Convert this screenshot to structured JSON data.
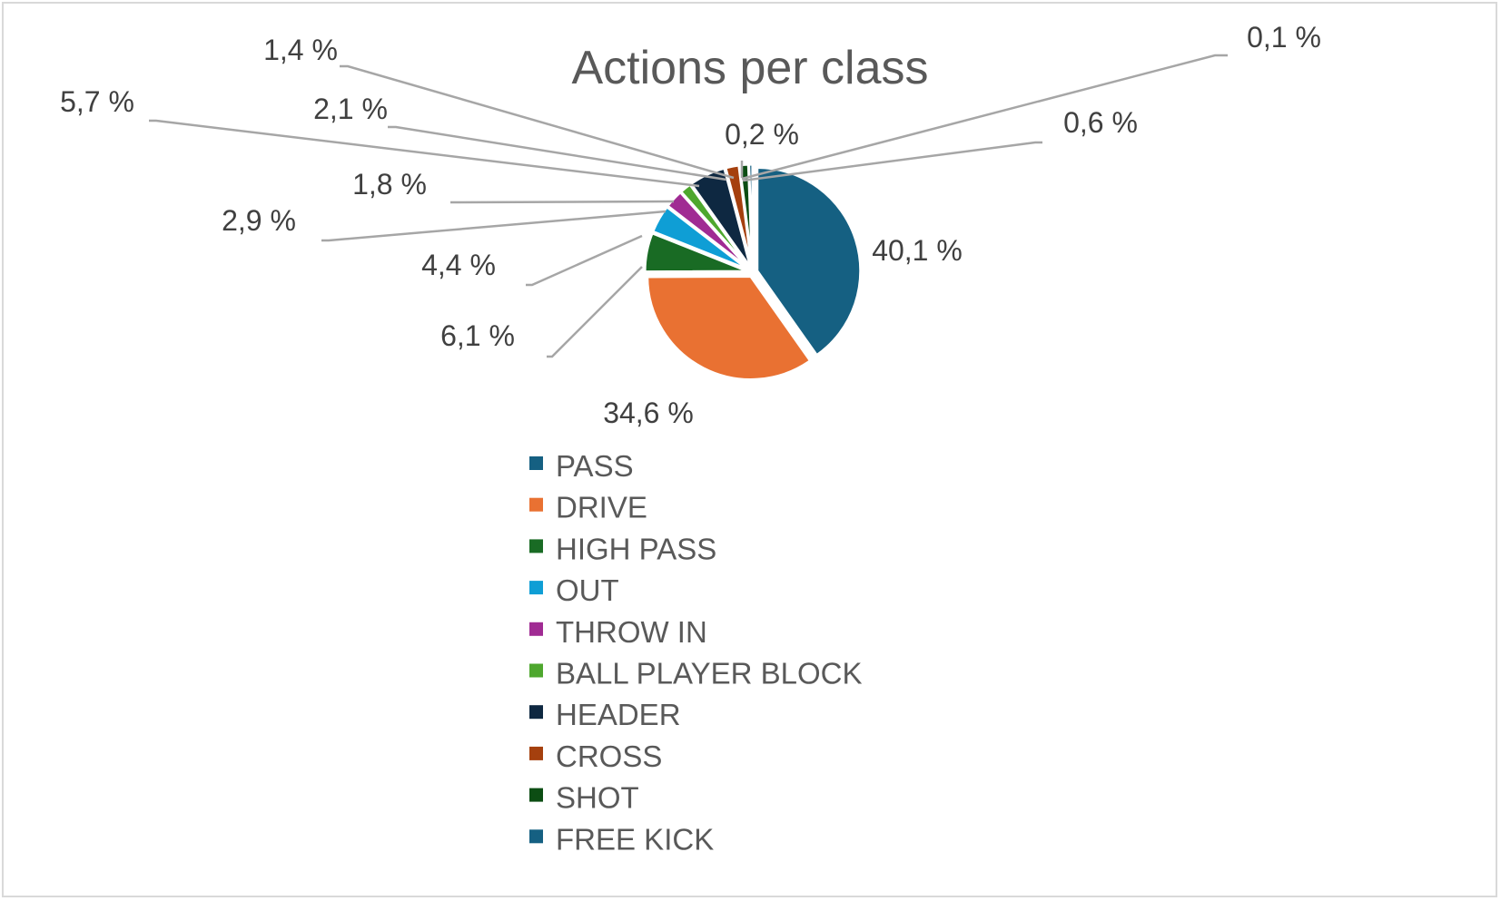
{
  "chart_data": {
    "type": "pie",
    "title": "Actions per class",
    "categories": [
      "PASS",
      "DRIVE",
      "HIGH PASS",
      "OUT",
      "THROW IN",
      "BALL PLAYER BLOCK",
      "HEADER",
      "CROSS",
      "SHOT",
      "FREE KICK"
    ],
    "values": [
      40.1,
      34.6,
      6.1,
      4.4,
      2.9,
      1.8,
      5.7,
      2.1,
      1.4,
      0.6
    ],
    "data_labels": [
      "40,1 %",
      "34,6 %",
      "6,1 %",
      "4,4 %",
      "2,9 %",
      "1,8 %",
      "5,7 %",
      "2,1 %",
      "1,4 %",
      "0,6 %"
    ],
    "extra_labels": [
      "0,2 %",
      "0,1 %"
    ],
    "colors": [
      "#156082",
      "#e97132",
      "#196b24",
      "#0f9ed5",
      "#a02b93",
      "#4ea72e",
      "#0e2841",
      "#a5400e",
      "#0c4d13",
      "#156082"
    ],
    "legend_position": "bottom"
  }
}
